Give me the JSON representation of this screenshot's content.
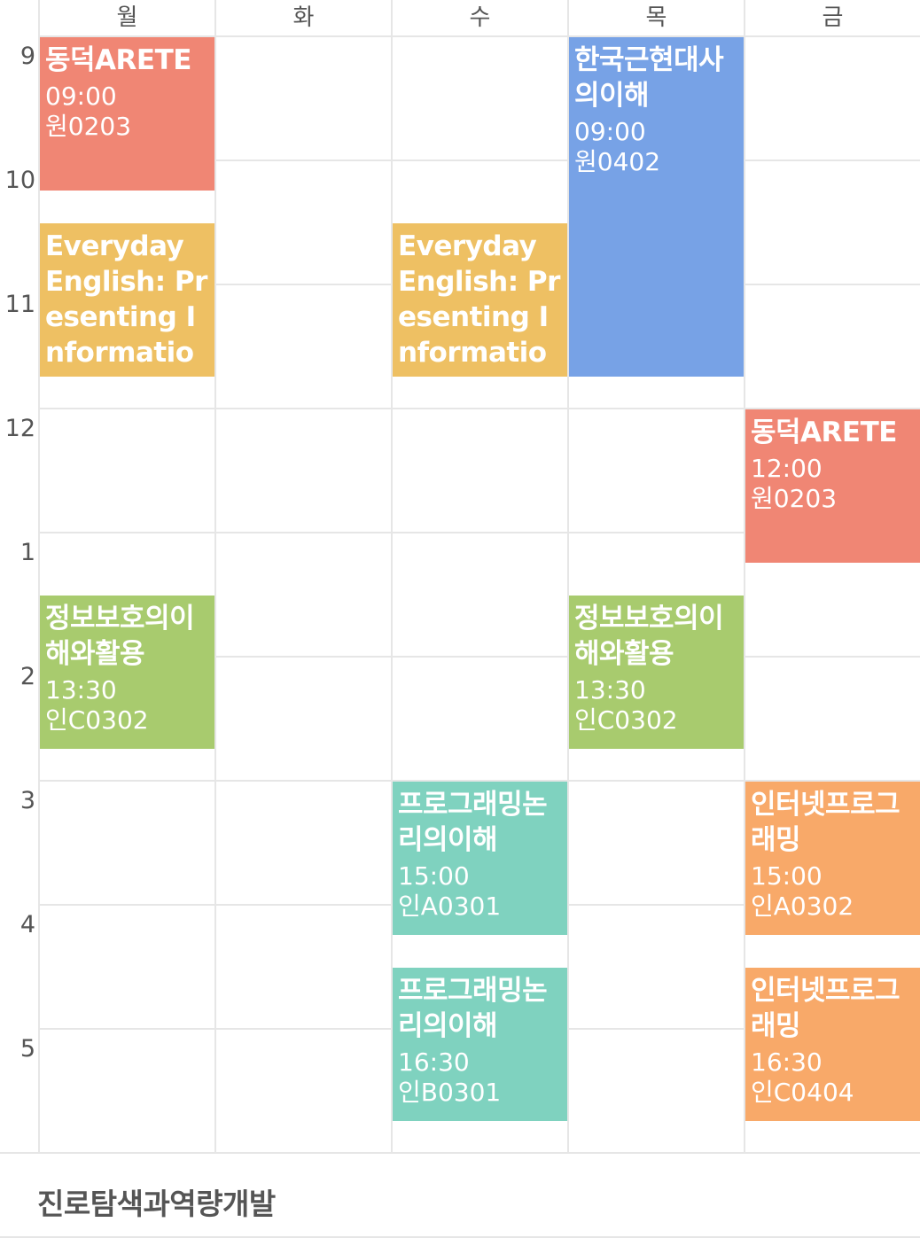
{
  "days": [
    "월",
    "화",
    "수",
    "목",
    "금"
  ],
  "hours": [
    "9",
    "10",
    "11",
    "12",
    "1",
    "2",
    "3",
    "4",
    "5"
  ],
  "first_hour": 9,
  "colors": {
    "red": "#F08674",
    "yellow": "#EEC063",
    "blue": "#77A2E6",
    "green": "#A8CB6E",
    "teal": "#7FD2BF",
    "orange": "#F8A969"
  },
  "events": [
    {
      "day": 0,
      "start": "09:00",
      "end": "10:15",
      "title": "동덕ARETE",
      "time": "09:00",
      "room": "원0203",
      "color": "red"
    },
    {
      "day": 0,
      "start": "10:30",
      "end": "11:45",
      "title": "Everyday English: Presenting Information",
      "time": "",
      "room": "",
      "color": "yellow"
    },
    {
      "day": 0,
      "start": "13:30",
      "end": "14:45",
      "title": "정보보호의이해와활용",
      "time": "13:30",
      "room": "인C0302",
      "color": "green"
    },
    {
      "day": 2,
      "start": "10:30",
      "end": "11:45",
      "title": "Everyday English: Presenting Information",
      "time": "",
      "room": "",
      "color": "yellow"
    },
    {
      "day": 2,
      "start": "15:00",
      "end": "16:15",
      "title": "프로그래밍논리의이해",
      "time": "15:00",
      "room": "인A0301",
      "color": "teal"
    },
    {
      "day": 2,
      "start": "16:30",
      "end": "17:45",
      "title": "프로그래밍논리의이해",
      "time": "16:30",
      "room": "인B0301",
      "color": "teal"
    },
    {
      "day": 3,
      "start": "09:00",
      "end": "11:45",
      "title": "한국근현대사의이해",
      "time": "09:00",
      "room": "원0402",
      "color": "blue"
    },
    {
      "day": 3,
      "start": "13:30",
      "end": "14:45",
      "title": "정보보호의이해와활용",
      "time": "13:30",
      "room": "인C0302",
      "color": "green"
    },
    {
      "day": 4,
      "start": "12:00",
      "end": "13:15",
      "title": "동덕ARETE",
      "time": "12:00",
      "room": "원0203",
      "color": "red"
    },
    {
      "day": 4,
      "start": "15:00",
      "end": "16:15",
      "title": "인터넷프로그래밍",
      "time": "15:00",
      "room": "인A0302",
      "color": "orange"
    },
    {
      "day": 4,
      "start": "16:30",
      "end": "17:45",
      "title": "인터넷프로그래밍",
      "time": "16:30",
      "room": "인C0404",
      "color": "orange"
    }
  ],
  "unscheduled": {
    "label": "진로탐색과역량개발"
  }
}
